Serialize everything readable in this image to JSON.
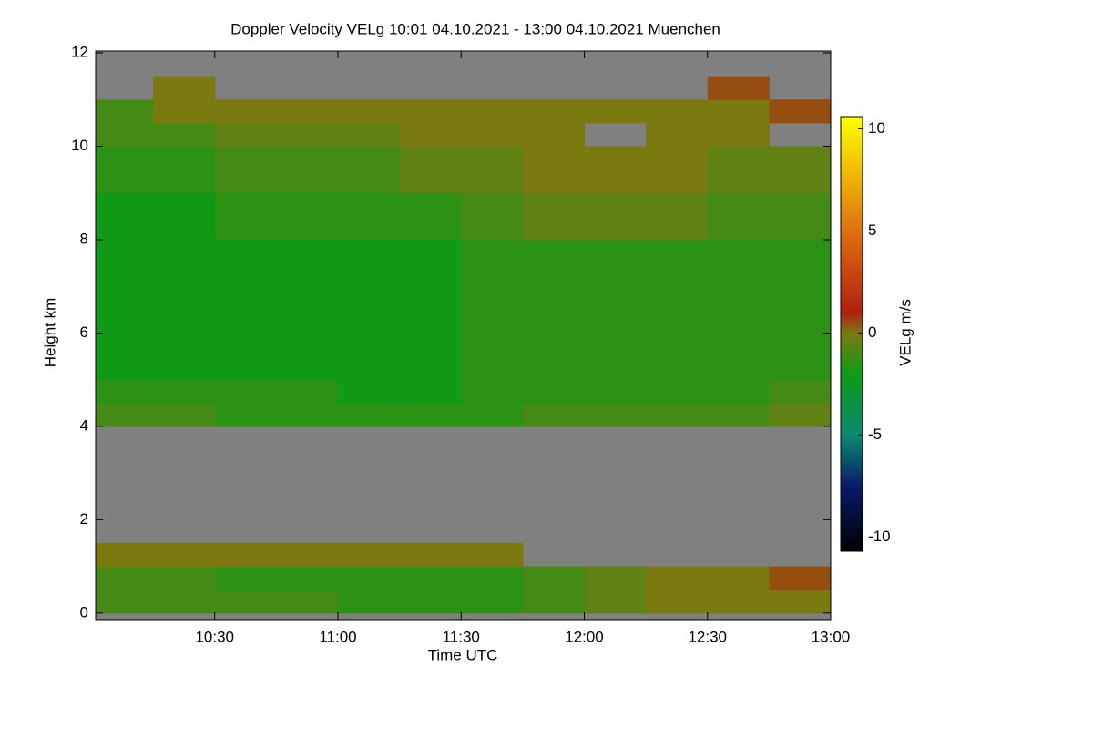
{
  "chart_data": {
    "type": "heatmap",
    "title": "Doppler Velocity VELg   10:01 04.10.2021 - 13:00 04.10.2021 Muenchen",
    "xlabel": "Time UTC",
    "ylabel": "Height km",
    "colorbar_label": "VELg m/s",
    "xlim": [
      10.0167,
      13.0
    ],
    "xticks": [
      {
        "value": 10.5,
        "label": "10:30"
      },
      {
        "value": 11.0,
        "label": "11:00"
      },
      {
        "value": 11.5,
        "label": "11:30"
      },
      {
        "value": 12.0,
        "label": "12:00"
      },
      {
        "value": 12.5,
        "label": "12:30"
      },
      {
        "value": 13.0,
        "label": "13:00"
      }
    ],
    "ylim": [
      -0.14,
      12.04
    ],
    "yticks": [
      0,
      2,
      4,
      6,
      8,
      10,
      12
    ],
    "clim": [
      -10.7,
      10.6
    ],
    "cticks": [
      -10,
      -5,
      0,
      5,
      10
    ],
    "colorscale": [
      [
        -10.7,
        "#000000"
      ],
      [
        -7.5,
        "#0a1a6a"
      ],
      [
        -5,
        "#0a8a70"
      ],
      [
        -2,
        "#109a18"
      ],
      [
        0,
        "#7a7a10"
      ],
      [
        1,
        "#b02010"
      ],
      [
        5,
        "#e07010"
      ],
      [
        10.6,
        "#ffff00"
      ]
    ],
    "nan_color": "#808080",
    "xbins": [
      10.0167,
      10.25,
      10.5,
      10.75,
      11.0,
      11.25,
      11.5,
      11.75,
      12.0,
      12.25,
      12.5,
      12.75,
      13.0
    ],
    "ybins": [
      0,
      0.5,
      1,
      1.5,
      2,
      2.5,
      3,
      3.5,
      4,
      4.5,
      5,
      5.5,
      6,
      6.5,
      7,
      7.5,
      8,
      8.5,
      9,
      9.5,
      10,
      10.5,
      11,
      11.5,
      12
    ],
    "values": [
      [
        -1,
        -1,
        -1,
        -1,
        -1.5,
        -1.5,
        -1.5,
        -1,
        -0.5,
        0,
        0,
        0
      ],
      [
        -1,
        -1,
        -1.5,
        -1.5,
        -1.5,
        -1.5,
        -1.5,
        -1,
        -0.5,
        0,
        0,
        0.5
      ],
      [
        0,
        0,
        0,
        0,
        0,
        0,
        0,
        null,
        null,
        null,
        null,
        null
      ],
      [
        null,
        null,
        null,
        null,
        null,
        null,
        null,
        null,
        null,
        null,
        null,
        null
      ],
      [
        null,
        null,
        null,
        null,
        null,
        null,
        null,
        null,
        null,
        null,
        null,
        null
      ],
      [
        null,
        null,
        null,
        null,
        null,
        null,
        null,
        null,
        null,
        null,
        null,
        null
      ],
      [
        null,
        null,
        null,
        null,
        null,
        null,
        null,
        null,
        null,
        null,
        null,
        null
      ],
      [
        null,
        null,
        null,
        null,
        null,
        null,
        null,
        null,
        null,
        null,
        null,
        null
      ],
      [
        -1,
        -1,
        -1.5,
        -1.5,
        -1.5,
        -1.5,
        -1.5,
        -1,
        -1,
        -1,
        -1,
        -0.5
      ],
      [
        -1.5,
        -1.5,
        -1.5,
        -1.5,
        -2,
        -2,
        -1.5,
        -1.5,
        -1.5,
        -1.5,
        -1.5,
        -1
      ],
      [
        -2,
        -2,
        -2,
        -2,
        -2,
        -2,
        -1.5,
        -1.5,
        -1.5,
        -1.5,
        -1.5,
        -1.5
      ],
      [
        -2,
        -2,
        -2,
        -2,
        -2,
        -2,
        -1.5,
        -1.5,
        -1.5,
        -1.5,
        -1.5,
        -1.5
      ],
      [
        -2,
        -2,
        -2,
        -2,
        -2,
        -2,
        -1.5,
        -1.5,
        -1.5,
        -1.5,
        -1.5,
        -1.5
      ],
      [
        -2,
        -2,
        -2,
        -2,
        -2,
        -2,
        -1.5,
        -1.5,
        -1.5,
        -1.5,
        -1.5,
        -1.5
      ],
      [
        -2,
        -2,
        -2,
        -2,
        -2,
        -2,
        -1.5,
        -1.5,
        -1.5,
        -1.5,
        -1.5,
        -1.5
      ],
      [
        -2,
        -2,
        -2,
        -2,
        -2,
        -2,
        -1.5,
        -1.5,
        -1.5,
        -1.5,
        -1.5,
        -1.5
      ],
      [
        -2,
        -2,
        -1.5,
        -1.5,
        -1.5,
        -1.5,
        -1,
        -0.5,
        -0.5,
        -0.5,
        -1,
        -1
      ],
      [
        -2,
        -2,
        -1.5,
        -1.5,
        -1.5,
        -1.5,
        -1,
        -0.5,
        -0.5,
        -0.5,
        -1,
        -1
      ],
      [
        -1.5,
        -1.5,
        -1,
        -1,
        -1,
        -0.5,
        -0.5,
        0,
        0,
        0,
        -0.5,
        -0.5
      ],
      [
        -1.5,
        -1.5,
        -1,
        -1,
        -1,
        -0.5,
        -0.5,
        0,
        0,
        0,
        -0.5,
        -0.5
      ],
      [
        -1,
        -1,
        -0.5,
        -0.5,
        -0.5,
        0,
        0,
        0,
        null,
        0,
        0,
        null
      ],
      [
        -1,
        0,
        0,
        0,
        0,
        0,
        0,
        0,
        0,
        0,
        0,
        0.5
      ],
      [
        null,
        0,
        null,
        null,
        null,
        null,
        null,
        null,
        null,
        null,
        0.5,
        null
      ],
      [
        null,
        null,
        null,
        null,
        null,
        null,
        null,
        null,
        null,
        null,
        null,
        null
      ]
    ]
  }
}
